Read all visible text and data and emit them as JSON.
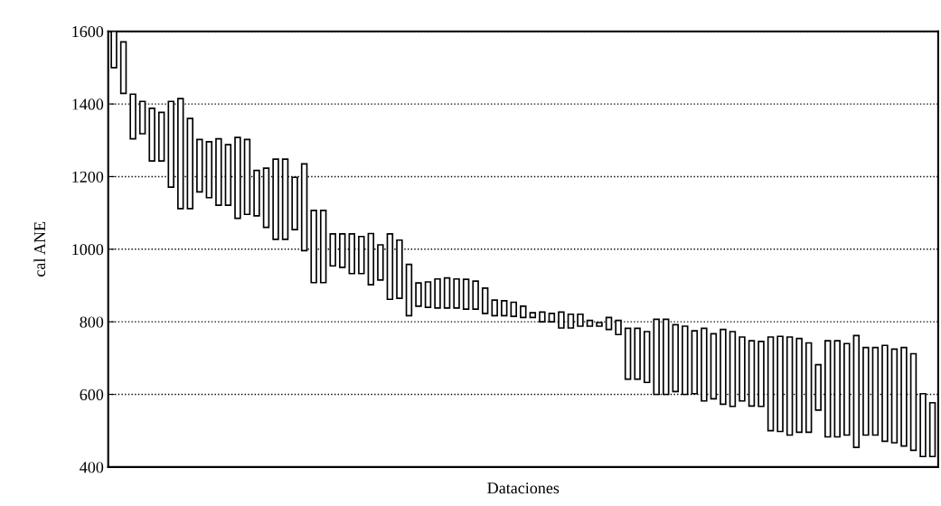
{
  "chart_data": {
    "type": "bar",
    "xlabel": "Dataciones",
    "ylabel": "cal ANE",
    "categories": [
      null,
      null,
      null,
      null,
      null,
      null,
      null,
      null,
      null,
      null,
      null,
      null,
      null,
      null,
      null,
      null,
      null,
      null,
      null,
      null,
      null,
      null,
      null,
      null,
      null,
      null,
      null,
      null,
      null,
      null,
      null,
      null,
      null,
      null,
      null,
      null,
      null,
      null,
      null,
      null,
      null,
      null,
      null,
      null,
      null,
      null,
      null,
      null,
      null,
      null,
      null,
      null,
      null,
      null,
      null,
      null,
      null,
      null,
      null,
      null,
      null,
      null,
      null,
      null,
      null,
      null,
      null,
      null,
      null,
      null,
      null,
      null,
      null,
      null,
      null,
      null,
      null,
      null,
      null,
      null,
      null,
      null,
      null,
      null,
      null,
      null,
      null
    ],
    "base": [
      1500,
      1429,
      1304,
      1318,
      1243,
      1243,
      1171,
      1112,
      1112,
      1158,
      1142,
      1121,
      1121,
      1085,
      1096,
      1092,
      1060,
      1027,
      1027,
      1054,
      996,
      908,
      908,
      954,
      950,
      933,
      933,
      902,
      915,
      862,
      865,
      817,
      843,
      840,
      838,
      838,
      838,
      835,
      835,
      823,
      817,
      817,
      815,
      812,
      812,
      800,
      800,
      783,
      783,
      788,
      788,
      788,
      779,
      765,
      642,
      642,
      633,
      600,
      600,
      608,
      600,
      602,
      582,
      588,
      573,
      567,
      582,
      568,
      567,
      500,
      498,
      488,
      496,
      496,
      557,
      483,
      483,
      488,
      454,
      488,
      488,
      471,
      467,
      458,
      446,
      429,
      429
    ],
    "values": [
      100,
      142,
      123,
      89,
      145,
      134,
      236,
      303,
      248,
      144,
      154,
      183,
      167,
      223,
      206,
      125,
      163,
      221,
      221,
      144,
      239,
      199,
      199,
      88,
      92,
      109,
      102,
      141,
      97,
      180,
      160,
      141,
      64,
      70,
      80,
      83,
      80,
      82,
      77,
      70,
      43,
      41,
      39,
      31,
      13,
      27,
      23,
      44,
      38,
      33,
      16,
      10,
      33,
      39,
      140,
      140,
      140,
      207,
      207,
      184,
      188,
      173,
      200,
      179,
      206,
      206,
      176,
      180,
      179,
      258,
      262,
      270,
      258,
      246,
      125,
      265,
      265,
      252,
      308,
      241,
      241,
      264,
      258,
      271,
      266,
      173,
      148
    ],
    "color": "#ffffff",
    "ylim": [
      400,
      1600
    ],
    "yticks": [
      400,
      600,
      800,
      1000,
      1200,
      1400,
      1600
    ],
    "grid": "y",
    "tick_labels": "y"
  }
}
